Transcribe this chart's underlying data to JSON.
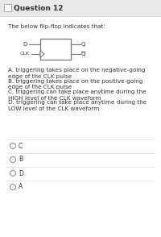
{
  "title": "Question 12",
  "intro_text": "The below flip-flop indicates that:",
  "options": [
    "A. triggering takes place on the negative-going\nedge of the CLK pulse",
    "B. triggering takes place on the positive-going\nedge of the CLK pulse",
    "C. triggering can take place anytime during the\nHIGH level of the CLK waveform",
    "D. triggering can take place anytime during the\nLOW level of the CLK waveform"
  ],
  "answers": [
    "C",
    "B",
    "D",
    "A"
  ],
  "bg_color": "#f0f0f0",
  "content_bg": "#ffffff",
  "title_bg": "#e8e8e8",
  "text_color": "#333333",
  "line_color": "#777777",
  "sep_color": "#dddddd",
  "radio_color": "#888888",
  "title_fontsize": 6.5,
  "body_fontsize": 5.2,
  "answer_fontsize": 5.5
}
